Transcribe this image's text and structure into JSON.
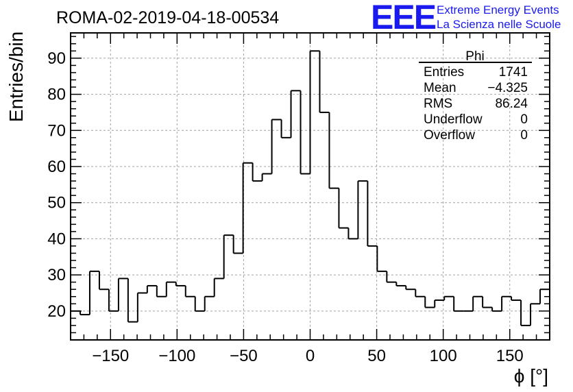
{
  "chart_data": {
    "type": "histogram",
    "title": "ROMA-02-2019-04-18-00534",
    "xlabel": "ϕ [°]",
    "ylabel": "Entries/bin",
    "xlim": [
      -180,
      180
    ],
    "ylim": [
      12,
      97
    ],
    "grid": true,
    "bin_width": 7.2,
    "bin_edges_start": -180,
    "x_ticks": [
      -150,
      -100,
      -50,
      0,
      50,
      100,
      150
    ],
    "x_tick_labels": [
      "−150",
      "−100",
      "−50",
      "0",
      "50",
      "100",
      "150"
    ],
    "y_ticks": [
      20,
      30,
      40,
      50,
      60,
      70,
      80,
      90
    ],
    "y_tick_labels": [
      "20",
      "30",
      "40",
      "50",
      "60",
      "70",
      "80",
      "90"
    ],
    "values": [
      20,
      19,
      31,
      26,
      20,
      29,
      17,
      25,
      27,
      24,
      28,
      27,
      24,
      20,
      24,
      29,
      41,
      36,
      61,
      56,
      58,
      73,
      68,
      81,
      58,
      92,
      75,
      54,
      43,
      40,
      56,
      38,
      31,
      28,
      27,
      26,
      24,
      21,
      23,
      24,
      20,
      20,
      24,
      21,
      20,
      24,
      23,
      16,
      22,
      26
    ]
  },
  "logo": {
    "mark": "EEE",
    "line1": "Extreme Energy Events",
    "line2": "La Scienza nelle Scuole"
  },
  "stats": {
    "title": "Phi",
    "rows": [
      {
        "label": "Entries",
        "value": "1741"
      },
      {
        "label": "Mean",
        "value": "−4.325"
      },
      {
        "label": "RMS",
        "value": "86.24"
      },
      {
        "label": "Underflow",
        "value": "0"
      },
      {
        "label": "Overflow",
        "value": "0"
      }
    ]
  },
  "colors": {
    "line": "#000000",
    "grid": "#a0a0a0",
    "logo": "#1a1aee"
  }
}
